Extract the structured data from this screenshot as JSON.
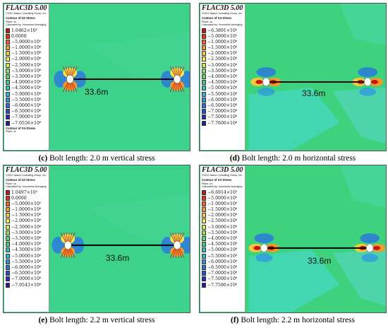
{
  "panels": [
    {
      "id": "c",
      "software": "FLAC3D 5.00",
      "copyright": "©2012 Itasca Consulting Group, Inc.",
      "contour_title": "Contour of ZZ-Stress",
      "plane": "Plane: on",
      "averaging": "Calculated by: Volumetric Averaging",
      "legend_values": [
        "1.0462×10⁵",
        "0.0000",
        "−5.0000×10⁵",
        "−1.0000×10⁶",
        "−1.5000×10⁶",
        "−2.0000×10⁶",
        "−2.5000×10⁶",
        "−3.0000×10⁶",
        "−3.5000×10⁶",
        "−4.0000×10⁶",
        "−4.5000×10⁶",
        "−5.0000×10⁶",
        "−5.5000×10⁶",
        "−6.0000×10⁶",
        "−6.5000×10⁶",
        "−7.0000×10⁶",
        "−7.0556×10⁶"
      ],
      "footer_title": "Contour of XX-Stress",
      "footer_plane": "Plane: on",
      "distance": "33.6m",
      "caption_letter": "(c)",
      "caption_text": " Bolt length: 2.0 m vertical stress",
      "stress": "vertical"
    },
    {
      "id": "d",
      "software": "FLAC3D 5.00",
      "copyright": "©2012 Itasca Consulting Group, Inc.",
      "contour_title": "Contour of XX-Stress",
      "plane": "Plane: on",
      "averaging": "Calculated by: Volumetric Averaging",
      "legend_values": [
        "−6.3891×10⁵",
        "−5.0000×10⁵",
        "−1.0000×10⁶",
        "−1.5000×10⁶",
        "−2.0000×10⁶",
        "−2.5000×10⁶",
        "−3.0000×10⁶",
        "−3.5000×10⁶",
        "−4.0000×10⁶",
        "−4.5000×10⁶",
        "−5.0000×10⁶",
        "−5.5000×10⁶",
        "−6.0000×10⁶",
        "−6.5000×10⁶",
        "−7.0000×10⁶",
        "−7.5000×10⁶",
        "−7.7606×10⁶"
      ],
      "footer_title": "",
      "footer_plane": "",
      "distance": "33.6m",
      "caption_letter": "(d)",
      "caption_text": " Bolt length: 2.0 m horizontal stress",
      "stress": "horizontal"
    },
    {
      "id": "e",
      "software": "FLAC3D 5.00",
      "copyright": "©2012 Itasca Consulting Group, Inc.",
      "contour_title": "Contour of ZZ-Stress",
      "plane": "Plane: on",
      "averaging": "Calculated by: Volumetric Averaging",
      "legend_values": [
        "1.0497×10⁵",
        "0.0000",
        "−5.0000×10⁵",
        "−1.0000×10⁶",
        "−1.5000×10⁶",
        "−2.0000×10⁶",
        "−2.5000×10⁶",
        "−3.0000×10⁶",
        "−3.5000×10⁶",
        "−4.0000×10⁶",
        "−4.5000×10⁶",
        "−5.0000×10⁶",
        "−5.5000×10⁶",
        "−6.0000×10⁶",
        "−6.5000×10⁶",
        "−7.0000×10⁶",
        "−7.0543×10⁶"
      ],
      "footer_title": "",
      "footer_plane": "",
      "distance": "33.6m",
      "caption_letter": "(e)",
      "caption_text": " Bolt length: 2.2 m vertical stress",
      "stress": "vertical"
    },
    {
      "id": "f",
      "software": "FLAC3D 5.00",
      "copyright": "©2012 Itasca Consulting Group, Inc.",
      "contour_title": "Contour of XX-Stress",
      "plane": "Plane: on",
      "averaging": "Calculated by: Volumetric Averaging",
      "legend_values": [
        "−6.6914×10⁵",
        "−5.0000×10⁵",
        "−1.0000×10⁶",
        "−1.5000×10⁶",
        "−2.0000×10⁶",
        "−2.5000×10⁶",
        "−3.0000×10⁶",
        "−3.5000×10⁶",
        "−4.0000×10⁶",
        "−4.5000×10⁶",
        "−5.0000×10⁶",
        "−5.5000×10⁶",
        "−6.0000×10⁶",
        "−6.5000×10⁶",
        "−7.0000×10⁶",
        "−7.5000×10⁶",
        "−7.7586×10⁶"
      ],
      "footer_title": "",
      "footer_plane": "",
      "distance": "33.6m",
      "caption_letter": "(f)",
      "caption_text": " Bolt length: 2.2 m horizontal stress",
      "stress": "horizontal"
    }
  ],
  "palette": {
    "scale": [
      "#c81414",
      "#e8301c",
      "#f0641e",
      "#f49a28",
      "#f8c83a",
      "#f4e84a",
      "#c8ec52",
      "#8ee25a",
      "#5ad866",
      "#3ccc88",
      "#32c4b0",
      "#2eb4d6",
      "#2c94e6",
      "#2a6ee8",
      "#2a48dc",
      "#2a2ac8",
      "#2a18a8"
    ],
    "field_vertical": "#3cd28a",
    "field_vertical_alt": "#44d696",
    "field_horizontal": "#3ed27e",
    "field_horizontal_alt": "#46d8c8"
  }
}
